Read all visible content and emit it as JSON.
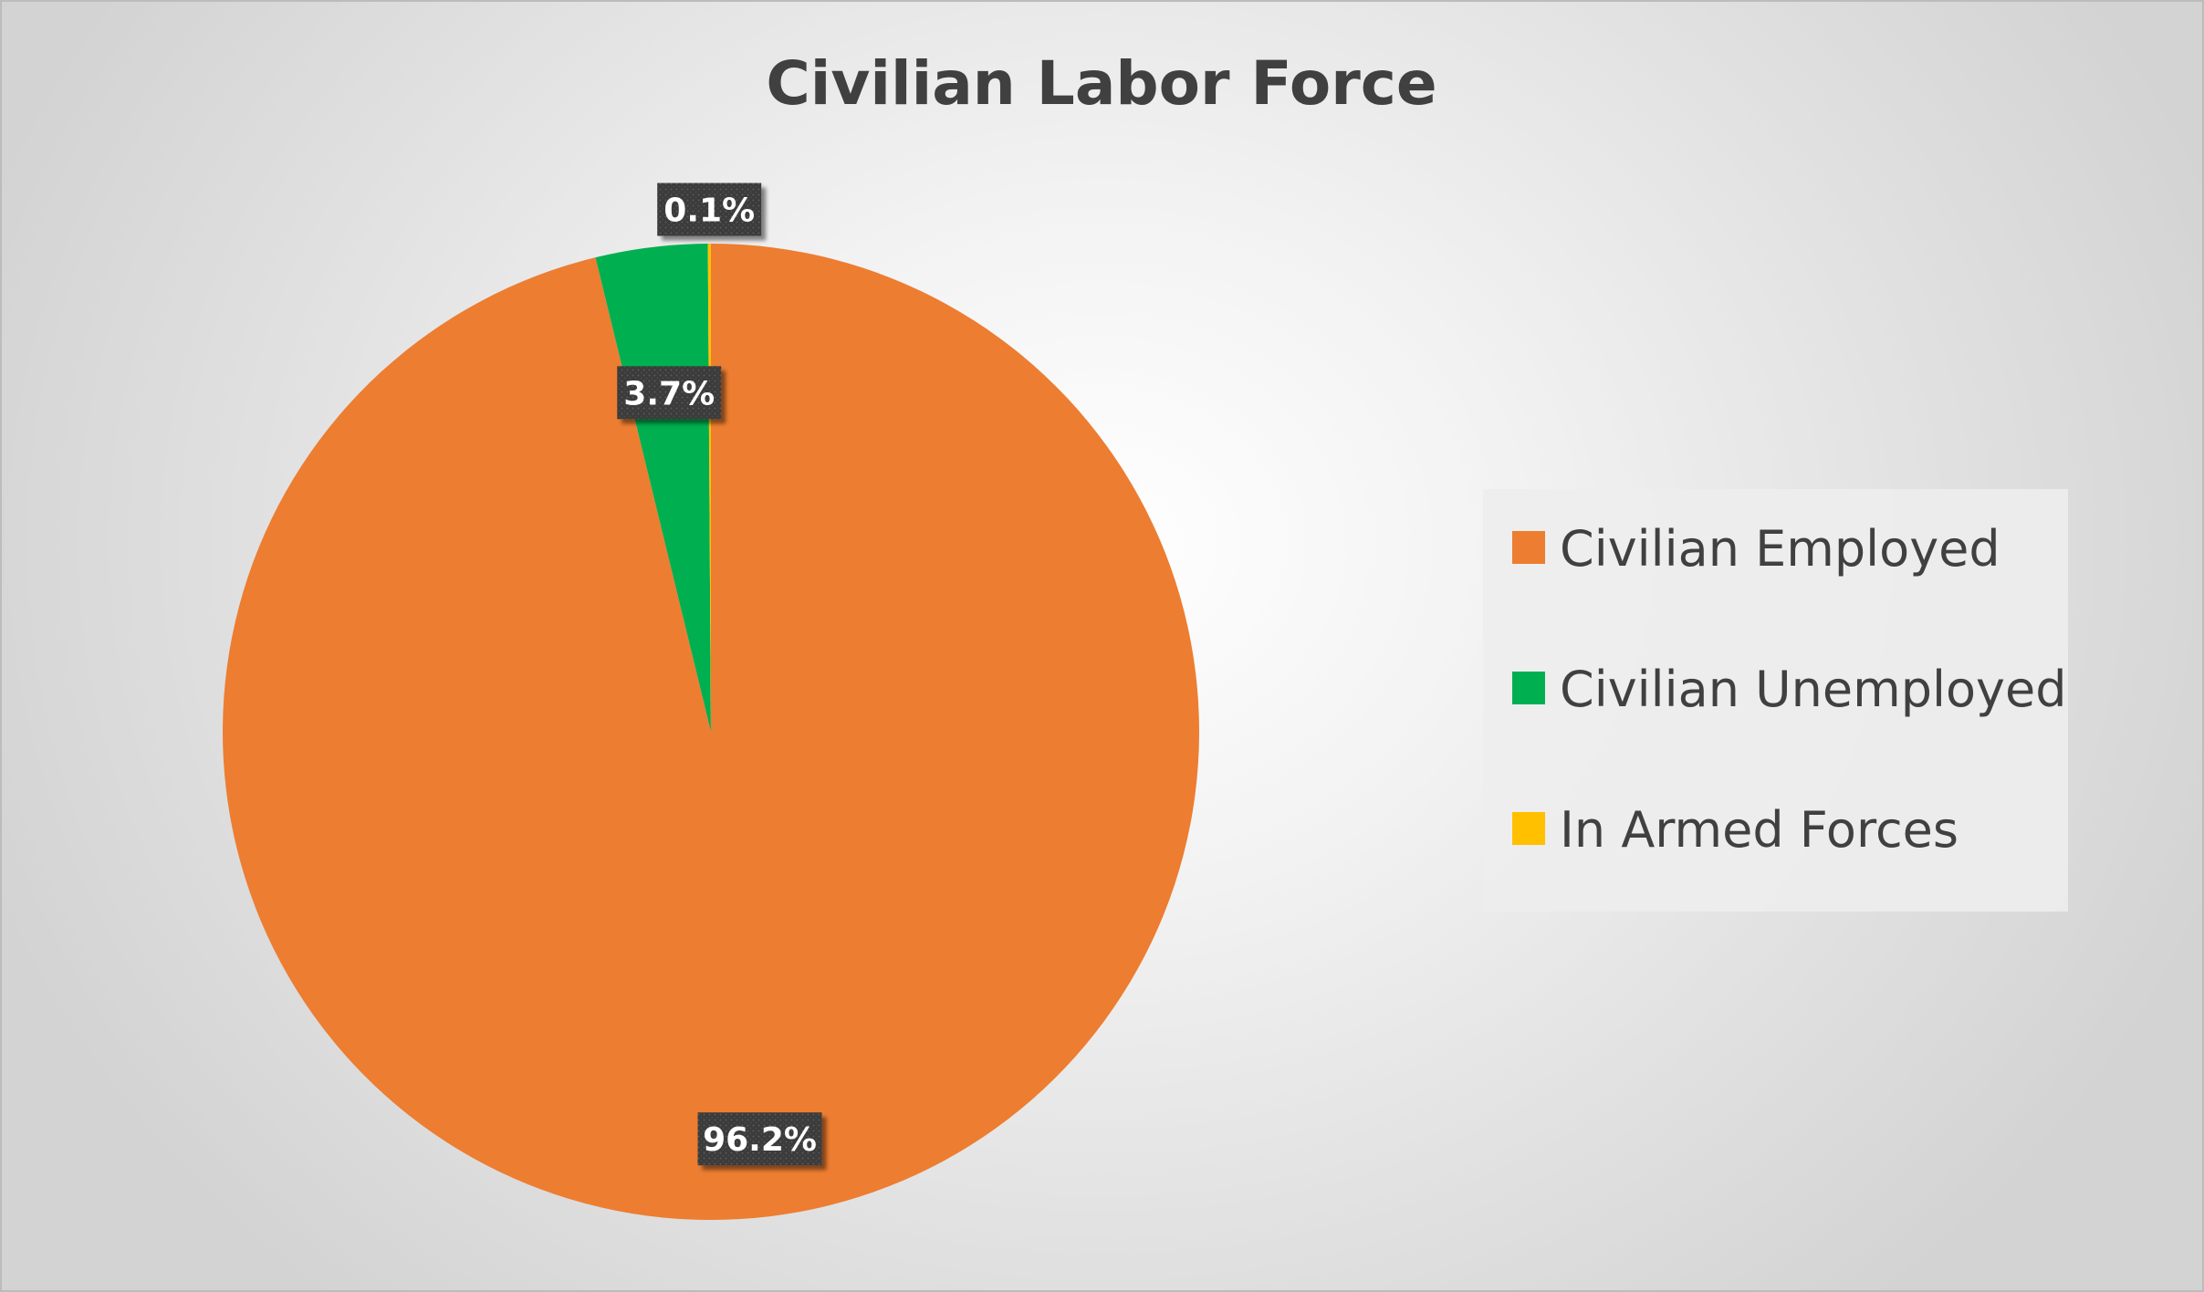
{
  "chart_data": {
    "type": "pie",
    "title": "Civilian Labor Force",
    "categories": [
      "Civilian Employed",
      "Civilian Unemployed",
      "In Armed Forces"
    ],
    "values": [
      96.2,
      3.7,
      0.1
    ],
    "data_labels": [
      "96.2%",
      "3.7%",
      "0.1%"
    ],
    "colors": [
      "#ED7D31",
      "#00B050",
      "#FFC000"
    ],
    "legend_placement": "right"
  }
}
